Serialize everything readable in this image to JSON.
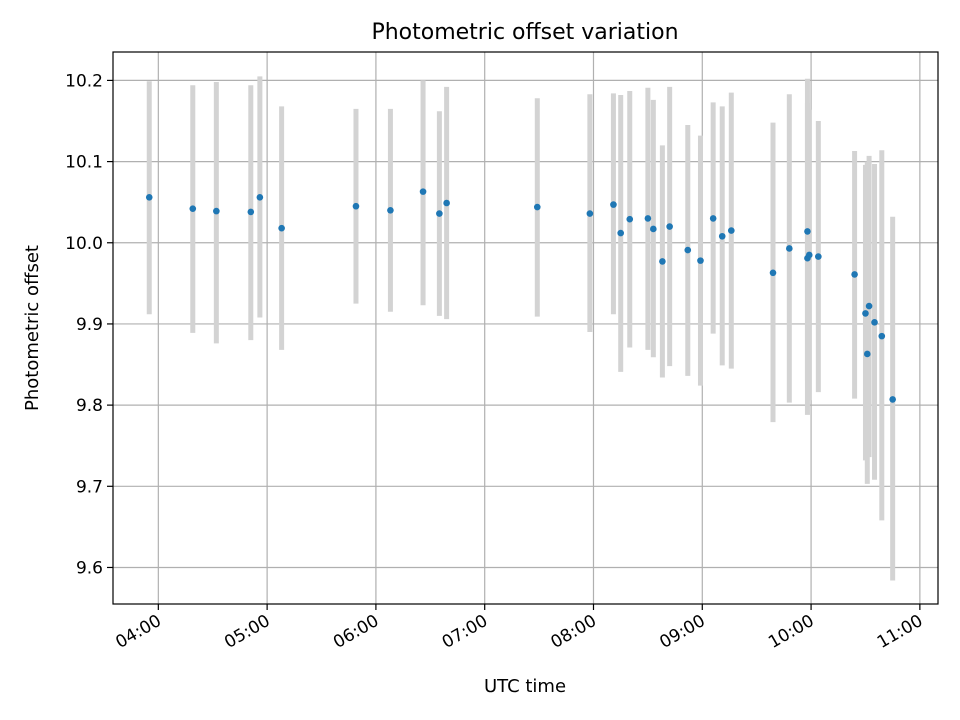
{
  "chart_data": {
    "type": "scatter",
    "title": "Photometric offset variation",
    "xlabel": "UTC time",
    "ylabel": "Photometric offset",
    "grid": true,
    "colors": {
      "points": "#1f77b4",
      "errorbars": "#d3d3d3"
    },
    "xlim": [
      "03:35",
      "11:10"
    ],
    "ylim": [
      9.555,
      10.235
    ],
    "x_ticks": [
      "04:00",
      "05:00",
      "06:00",
      "07:00",
      "08:00",
      "09:00",
      "10:00",
      "11:00"
    ],
    "y_ticks": [
      "9.6",
      "9.7",
      "9.8",
      "9.9",
      "10.0",
      "10.1",
      "10.2"
    ],
    "points": [
      {
        "t": "03:55",
        "y": 10.056,
        "lo": 9.912,
        "hi": 10.199
      },
      {
        "t": "04:19",
        "y": 10.042,
        "lo": 9.889,
        "hi": 10.194
      },
      {
        "t": "04:32",
        "y": 10.039,
        "lo": 9.876,
        "hi": 10.198
      },
      {
        "t": "04:51",
        "y": 10.038,
        "lo": 9.88,
        "hi": 10.194
      },
      {
        "t": "04:56",
        "y": 10.056,
        "lo": 9.908,
        "hi": 10.205
      },
      {
        "t": "05:08",
        "y": 10.018,
        "lo": 9.868,
        "hi": 10.168
      },
      {
        "t": "05:49",
        "y": 10.045,
        "lo": 9.925,
        "hi": 10.165
      },
      {
        "t": "06:08",
        "y": 10.04,
        "lo": 9.915,
        "hi": 10.165
      },
      {
        "t": "06:26",
        "y": 10.063,
        "lo": 9.923,
        "hi": 10.2
      },
      {
        "t": "06:35",
        "y": 10.036,
        "lo": 9.91,
        "hi": 10.162
      },
      {
        "t": "06:39",
        "y": 10.049,
        "lo": 9.906,
        "hi": 10.192
      },
      {
        "t": "07:29",
        "y": 10.044,
        "lo": 9.909,
        "hi": 10.178
      },
      {
        "t": "07:58",
        "y": 10.036,
        "lo": 9.89,
        "hi": 10.183
      },
      {
        "t": "08:11",
        "y": 10.047,
        "lo": 9.912,
        "hi": 10.184
      },
      {
        "t": "08:15",
        "y": 10.012,
        "lo": 9.841,
        "hi": 10.182
      },
      {
        "t": "08:20",
        "y": 10.029,
        "lo": 9.871,
        "hi": 10.187
      },
      {
        "t": "08:30",
        "y": 10.03,
        "lo": 9.868,
        "hi": 10.191
      },
      {
        "t": "08:33",
        "y": 10.017,
        "lo": 9.859,
        "hi": 10.176
      },
      {
        "t": "08:38",
        "y": 9.977,
        "lo": 9.834,
        "hi": 10.12
      },
      {
        "t": "08:42",
        "y": 10.02,
        "lo": 9.848,
        "hi": 10.192
      },
      {
        "t": "08:52",
        "y": 9.991,
        "lo": 9.836,
        "hi": 10.145
      },
      {
        "t": "08:59",
        "y": 9.978,
        "lo": 9.824,
        "hi": 10.132
      },
      {
        "t": "09:06",
        "y": 10.03,
        "lo": 9.888,
        "hi": 10.173
      },
      {
        "t": "09:11",
        "y": 10.008,
        "lo": 9.849,
        "hi": 10.168
      },
      {
        "t": "09:16",
        "y": 10.015,
        "lo": 9.845,
        "hi": 10.185
      },
      {
        "t": "09:39",
        "y": 9.963,
        "lo": 9.779,
        "hi": 10.148
      },
      {
        "t": "09:48",
        "y": 9.993,
        "lo": 9.803,
        "hi": 10.183
      },
      {
        "t": "09:58",
        "y": 9.981,
        "lo": 9.788,
        "hi": 10.202
      },
      {
        "t": "09:58",
        "y": 10.014,
        "lo": 9.83,
        "hi": 10.172
      },
      {
        "t": "09:59",
        "y": 9.985,
        "lo": 9.806,
        "hi": 10.164
      },
      {
        "t": "10:04",
        "y": 9.983,
        "lo": 9.816,
        "hi": 10.15
      },
      {
        "t": "10:24",
        "y": 9.961,
        "lo": 9.808,
        "hi": 10.113
      },
      {
        "t": "10:30",
        "y": 9.913,
        "lo": 9.732,
        "hi": 10.096
      },
      {
        "t": "10:31",
        "y": 9.863,
        "lo": 9.703,
        "hi": 10.1
      },
      {
        "t": "10:32",
        "y": 9.922,
        "lo": 9.736,
        "hi": 10.107
      },
      {
        "t": "10:35",
        "y": 9.902,
        "lo": 9.708,
        "hi": 10.097
      },
      {
        "t": "10:39",
        "y": 9.885,
        "lo": 9.658,
        "hi": 10.114
      },
      {
        "t": "10:45",
        "y": 9.807,
        "lo": 9.584,
        "hi": 10.032
      }
    ]
  }
}
